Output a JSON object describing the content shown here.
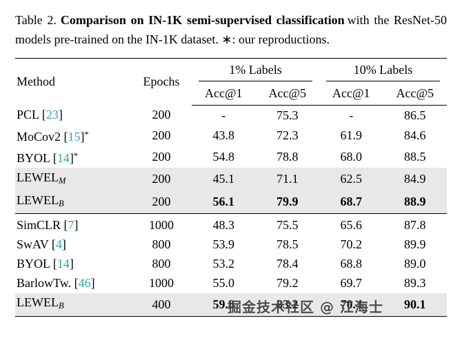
{
  "caption": {
    "label": "Table 2.",
    "title_bold": "Comparison on IN-1K semi-supervised classification",
    "rest": "with the ResNet-50 models pre-trained on the IN-1K dataset. ∗: our reproductions."
  },
  "table": {
    "col_method": "Method",
    "col_epochs": "Epochs",
    "group1": "1% Labels",
    "group2": "10% Labels",
    "subheaders": [
      "Acc@1",
      "Acc@5",
      "Acc@1",
      "Acc@5"
    ],
    "rows": [
      {
        "name": "PCL",
        "cite": "23",
        "star": false,
        "sub": "",
        "epochs": "200",
        "vals": [
          "-",
          "75.3",
          "-",
          "86.5"
        ],
        "bold": false,
        "hl": false,
        "sep": false
      },
      {
        "name": "MoCov2",
        "cite": "15",
        "star": true,
        "sub": "",
        "epochs": "200",
        "vals": [
          "43.8",
          "72.3",
          "61.9",
          "84.6"
        ],
        "bold": false,
        "hl": false,
        "sep": false
      },
      {
        "name": "BYOL",
        "cite": "14",
        "star": true,
        "sub": "",
        "epochs": "200",
        "vals": [
          "54.8",
          "78.8",
          "68.0",
          "88.5"
        ],
        "bold": false,
        "hl": false,
        "sep": false
      },
      {
        "name": "LEWEL",
        "cite": "",
        "star": false,
        "sub": "M",
        "epochs": "200",
        "vals": [
          "45.1",
          "71.1",
          "62.5",
          "84.9"
        ],
        "bold": false,
        "hl": true,
        "sep": false
      },
      {
        "name": "LEWEL",
        "cite": "",
        "star": false,
        "sub": "B",
        "epochs": "200",
        "vals": [
          "56.1",
          "79.9",
          "68.7",
          "88.9"
        ],
        "bold": true,
        "hl": true,
        "sep": false
      },
      {
        "name": "SimCLR",
        "cite": "7",
        "star": false,
        "sub": "",
        "epochs": "1000",
        "vals": [
          "48.3",
          "75.5",
          "65.6",
          "87.8"
        ],
        "bold": false,
        "hl": false,
        "sep": true
      },
      {
        "name": "SwAV",
        "cite": "4",
        "star": false,
        "sub": "",
        "epochs": "800",
        "vals": [
          "53.9",
          "78.5",
          "70.2",
          "89.9"
        ],
        "bold": false,
        "hl": false,
        "sep": false
      },
      {
        "name": "BYOL",
        "cite": "14",
        "star": false,
        "sub": "",
        "epochs": "800",
        "vals": [
          "53.2",
          "78.4",
          "68.8",
          "89.0"
        ],
        "bold": false,
        "hl": false,
        "sep": false
      },
      {
        "name": "BarlowTw.",
        "cite": "46",
        "star": false,
        "sub": "",
        "epochs": "1000",
        "vals": [
          "55.0",
          "79.2",
          "69.7",
          "89.3"
        ],
        "bold": false,
        "hl": false,
        "sep": false
      },
      {
        "name": "LEWEL",
        "cite": "",
        "star": false,
        "sub": "B",
        "epochs": "400",
        "vals": [
          "59.8",
          "83.2",
          "70.4",
          "90.1"
        ],
        "bold": true,
        "hl": true,
        "sep": false
      }
    ]
  },
  "watermark": "掘金技术社区 @ 江海士",
  "colors": {
    "cite": "#2aa5b5",
    "highlight": "#e8e8e8"
  }
}
